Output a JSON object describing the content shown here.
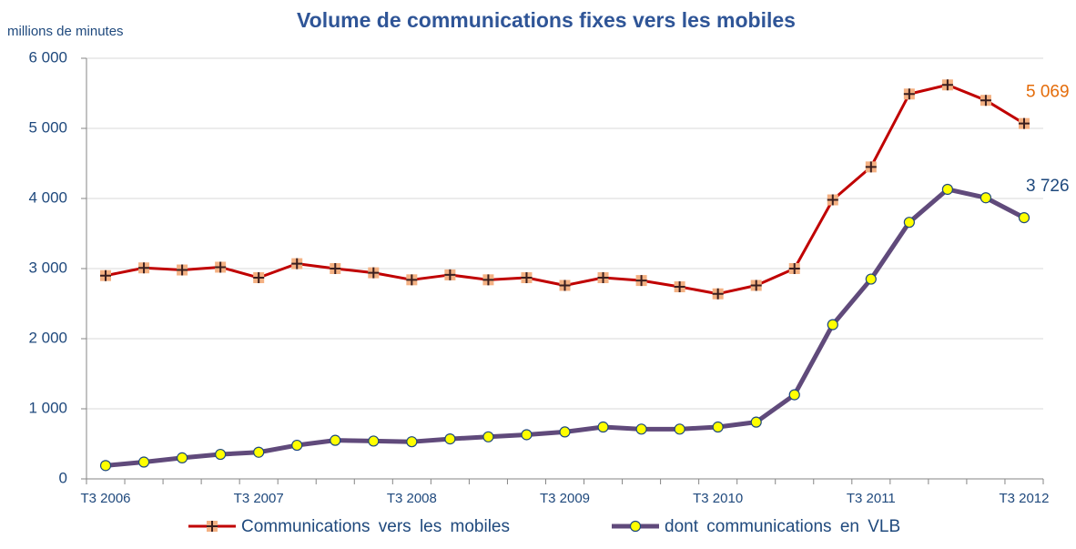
{
  "chart_data": {
    "type": "line",
    "title": "Volume de communications fixes vers les mobiles",
    "y_axis_label": "millions de minutes",
    "categories": [
      "T3 2006",
      null,
      null,
      null,
      "T3 2007",
      null,
      null,
      null,
      "T3 2008",
      null,
      null,
      null,
      "T3 2009",
      null,
      null,
      null,
      "T3 2010",
      null,
      null,
      null,
      "T3 2011",
      null,
      null,
      null,
      "T3 2012"
    ],
    "series": [
      {
        "name": "Communications vers les mobiles",
        "color": "#c00000",
        "marker": "cross-square",
        "marker_color": "#f4b183",
        "label_color": "#e46c0a",
        "values": [
          2900,
          3010,
          2980,
          3020,
          2870,
          3070,
          3000,
          2940,
          2840,
          2910,
          2840,
          2870,
          2760,
          2870,
          2830,
          2740,
          2640,
          2760,
          3000,
          3980,
          4450,
          5490,
          5620,
          5400,
          5069
        ],
        "value_labels": [
          null,
          null,
          null,
          null,
          null,
          null,
          null,
          null,
          null,
          null,
          null,
          null,
          null,
          null,
          null,
          null,
          null,
          null,
          null,
          null,
          null,
          null,
          null,
          null,
          "5 069"
        ]
      },
      {
        "name": "dont communications en VLB",
        "color": "#604a7b",
        "marker": "circle",
        "marker_color": "#ffff00",
        "label_color": "#1f497d",
        "values": [
          190,
          240,
          300,
          350,
          380,
          480,
          550,
          540,
          530,
          570,
          600,
          630,
          670,
          740,
          710,
          710,
          740,
          810,
          1200,
          2200,
          2850,
          3660,
          4130,
          4010,
          3726
        ],
        "value_labels": [
          null,
          null,
          null,
          null,
          null,
          null,
          null,
          null,
          null,
          null,
          null,
          null,
          null,
          null,
          null,
          null,
          null,
          null,
          null,
          null,
          null,
          null,
          null,
          null,
          "3 726"
        ]
      }
    ],
    "ylim": [
      0,
      6000
    ],
    "yticks": [
      0,
      {
        "value": 1000,
        "label": "1 000"
      },
      {
        "value": 2000,
        "label": "2 000"
      },
      {
        "value": 3000,
        "label": "3 000"
      },
      {
        "value": 4000,
        "label": "4 000"
      },
      {
        "value": 5000,
        "label": "5 000"
      },
      {
        "value": 6000,
        "label": "6 000"
      }
    ],
    "grid": true,
    "legend": "bottom"
  }
}
